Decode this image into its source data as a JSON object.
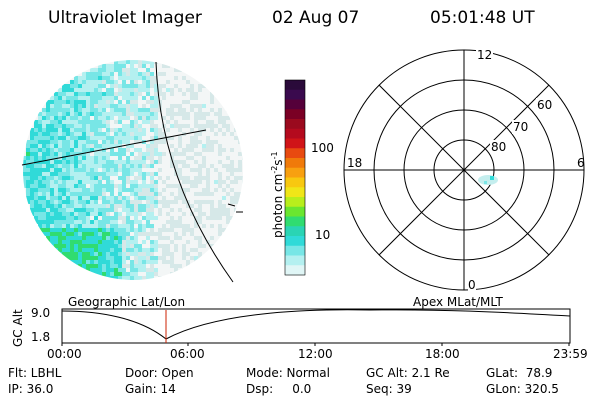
{
  "header": {
    "instrument": "Ultraviolet Imager",
    "date": "02 Aug 07",
    "time": "05:01:48 UT"
  },
  "colorbar": {
    "label": "photon cm",
    "label_exp1": "-2",
    "label_mid": "s",
    "label_exp2": "-1",
    "ticks": [
      "100",
      "10"
    ],
    "colors": [
      "#2a0a3a",
      "#3a0a4e",
      "#55003a",
      "#7a0024",
      "#9a0a1e",
      "#b40a1e",
      "#d01418",
      "#e84a10",
      "#f07a0a",
      "#f8a010",
      "#f8c810",
      "#f0e618",
      "#b8ee1c",
      "#6ae630",
      "#30dc70",
      "#2ad4b4",
      "#30dad8",
      "#78e6e6",
      "#b4f0f0",
      "#e0f6f6"
    ]
  },
  "polar_plot": {
    "mlt_labels": [
      "12",
      "18",
      "6",
      "0"
    ],
    "lat_labels": [
      "60",
      "70",
      "80"
    ]
  },
  "timeline": {
    "yaxis_label": "GC Alt",
    "yticks": [
      "9.0",
      "1.8"
    ],
    "left_title": "Geographic Lat/Lon",
    "right_title": "Apex MLat/MLT",
    "xticks": [
      "00:00",
      "06:00",
      "12:00",
      "18:00",
      "23:59"
    ],
    "marker_color": "#cc2200"
  },
  "info": {
    "col1": [
      "Flt: LBHL",
      "IP: 36.0"
    ],
    "col2": [
      "Door: Open",
      "Gain: 14"
    ],
    "col3": [
      "Mode: Normal",
      "Dsp:     0.0"
    ],
    "col4": [
      "GC Alt: 2.1 Re",
      "Seq: 39"
    ],
    "col5": [
      "GLat:  78.9",
      "GLon: 320.5"
    ]
  }
}
